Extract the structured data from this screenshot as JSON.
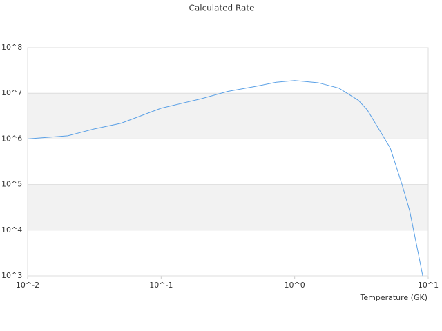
{
  "chart_data": {
    "type": "line",
    "title": "Calculated Rate",
    "x_label": "Temperature (GK)",
    "xscale": "log",
    "yscale": "log",
    "grid": true,
    "bands": true,
    "xlim": [
      0.01,
      10
    ],
    "ylim": [
      1000,
      100000000
    ],
    "xticks": [
      {
        "value": 0.01,
        "label": "10^-2"
      },
      {
        "value": 0.1,
        "label": "10^-1"
      },
      {
        "value": 1,
        "label": "10^0"
      },
      {
        "value": 10,
        "label": "10^1"
      }
    ],
    "yticks": [
      {
        "value": 1000,
        "label": "10^3"
      },
      {
        "value": 10000,
        "label": "10^4"
      },
      {
        "value": 100000,
        "label": "10^5"
      },
      {
        "value": 1000000,
        "label": "10^6"
      },
      {
        "value": 10000000,
        "label": "10^7"
      },
      {
        "value": 100000000,
        "label": "10^8"
      }
    ],
    "x": [
      0.01,
      0.02,
      0.0316,
      0.05,
      0.1,
      0.2,
      0.316,
      0.5,
      0.728,
      1.0,
      1.5,
      2.14,
      3.0,
      3.5,
      4.35,
      5.2,
      6.37,
      7.26,
      8.38,
      9.1
    ],
    "series": [
      {
        "color": "#5aa0e6",
        "values": [
          1000000,
          1170000,
          1660000,
          2200000,
          4700000,
          7600000,
          11000000,
          14000000,
          17400000,
          19000000,
          17000000,
          13000000,
          7000000,
          4300000,
          1500000,
          630000,
          100000,
          27000,
          3400,
          1000
        ]
      }
    ]
  }
}
